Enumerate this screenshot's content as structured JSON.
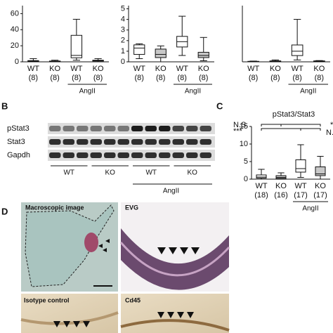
{
  "chart_data": [
    {
      "type": "box",
      "categories": [
        "WT",
        "KO",
        "WT",
        "KO"
      ],
      "n_labels": [
        "(8)",
        "(8)",
        "(8)",
        "(8)"
      ],
      "group_label": "AngII",
      "colors": [
        "#ffffff",
        "#c8c8c8",
        "#ffffff",
        "#c8c8c8"
      ],
      "ylim": [
        0,
        70
      ],
      "yticks": [
        0,
        20,
        40,
        60
      ],
      "boxes": [
        {
          "min": 0,
          "q1": 0.5,
          "median": 1,
          "q3": 1.5,
          "max": 4
        },
        {
          "min": 0,
          "q1": 0,
          "median": 0.5,
          "q3": 1,
          "max": 2
        },
        {
          "min": 2,
          "q1": 5,
          "median": 8,
          "q3": 33,
          "max": 53
        },
        {
          "min": 0,
          "q1": 1,
          "median": 1.5,
          "q3": 2,
          "max": 4
        }
      ]
    },
    {
      "type": "box",
      "categories": [
        "WT",
        "KO",
        "WT",
        "KO"
      ],
      "n_labels": [
        "(8)",
        "(8)",
        "(8)",
        "(8)"
      ],
      "group_label": "AngII",
      "colors": [
        "#ffffff",
        "#c8c8c8",
        "#ffffff",
        "#c8c8c8"
      ],
      "ylim": [
        0,
        5.3
      ],
      "yticks": [
        0,
        1,
        2,
        3,
        4,
        5
      ],
      "boxes": [
        {
          "min": 0.3,
          "q1": 0.7,
          "median": 1.3,
          "q3": 1.6,
          "max": 1.7
        },
        {
          "min": 0,
          "q1": 0.4,
          "median": 0.7,
          "q3": 1.2,
          "max": 1.5
        },
        {
          "min": 0.6,
          "q1": 1.4,
          "median": 1.9,
          "q3": 2.4,
          "max": 4.3
        },
        {
          "min": 0.1,
          "q1": 0.4,
          "median": 0.6,
          "q3": 0.9,
          "max": 2.3
        }
      ]
    },
    {
      "type": "box",
      "categories": [
        "WT",
        "KO",
        "WT",
        "KO"
      ],
      "n_labels": [
        "(8)",
        "(8)",
        "(8)",
        "(8)"
      ],
      "group_label": "AngII",
      "colors": [
        "#ffffff",
        "#c8c8c8",
        "#ffffff",
        "#c8c8c8"
      ],
      "ylim": [
        0,
        90
      ],
      "boxes": [
        {
          "min": 0,
          "q1": 0.2,
          "median": 0.5,
          "q3": 0.8,
          "max": 1.2
        },
        {
          "min": 0,
          "q1": 0.5,
          "median": 1,
          "q3": 1.5,
          "max": 3
        },
        {
          "min": 3,
          "q1": 10,
          "median": 17,
          "q3": 27,
          "max": 68
        },
        {
          "min": 0,
          "q1": 0.5,
          "median": 1,
          "q3": 1.5,
          "max": 2
        }
      ]
    },
    {
      "type": "box",
      "title": "pStat3/Stat3",
      "categories": [
        "WT",
        "KO",
        "WT",
        "KO"
      ],
      "n_labels": [
        "(18)",
        "(16)",
        "(17)",
        "(17)"
      ],
      "group_label": "AngII",
      "colors": [
        "#ffffff",
        "#c8c8c8",
        "#ffffff",
        "#c8c8c8"
      ],
      "ylim": [
        0,
        15
      ],
      "yticks": [
        0,
        5,
        10,
        15
      ],
      "annotations": [
        "N.S.",
        "***",
        "*",
        "N.S."
      ],
      "boxes": [
        {
          "min": 0,
          "q1": 0.3,
          "median": 0.6,
          "q3": 1.2,
          "max": 2.8
        },
        {
          "min": 0,
          "q1": 0.2,
          "median": 0.5,
          "q3": 1,
          "max": 1.8
        },
        {
          "min": 0.5,
          "q1": 2,
          "median": 3,
          "q3": 5.5,
          "max": 9.8
        },
        {
          "min": 0,
          "q1": 1,
          "median": 1.5,
          "q3": 3.5,
          "max": 6.5
        }
      ]
    }
  ],
  "panel_labels": [
    "B",
    "C",
    "D"
  ],
  "blot": {
    "rows": [
      "pStat3",
      "Stat3",
      "Gapdh"
    ],
    "groups": [
      "WT",
      "KO",
      "WT",
      "KO"
    ],
    "group_label": "AngII"
  },
  "images": [
    "Macroscopic image",
    "EVG",
    "Isotype control",
    "Cd45"
  ]
}
